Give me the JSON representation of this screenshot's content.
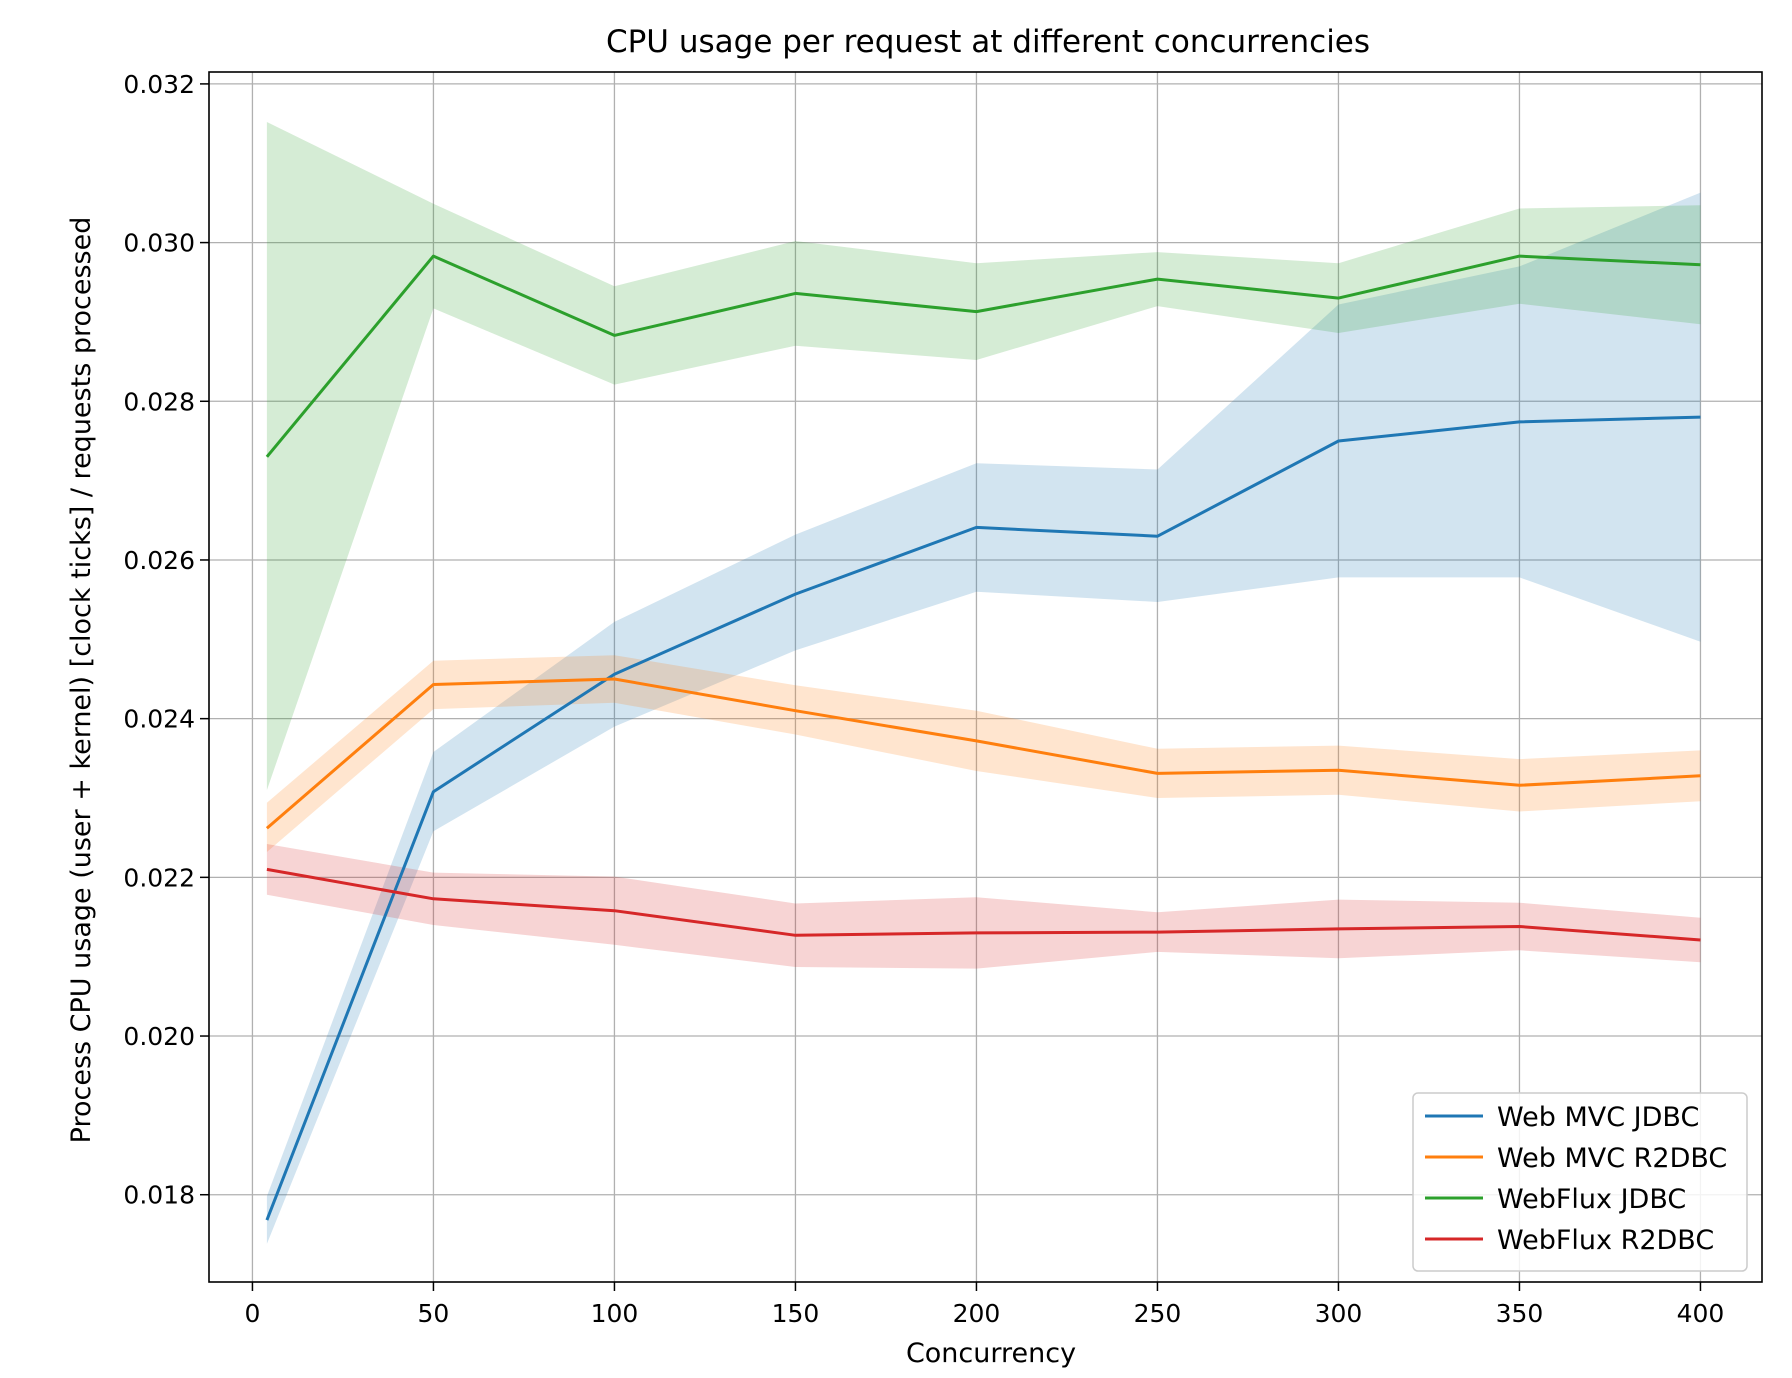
{
  "chart_data": {
    "type": "line",
    "title": "CPU usage per request at different concurrencies",
    "xlabel": "Concurrency",
    "ylabel": "Process CPU usage (user + kernel) [clock ticks] / requests processed",
    "xlim": [
      -12,
      417
    ],
    "ylim": [
      0.0169,
      0.03215
    ],
    "xticks": [
      0,
      50,
      100,
      150,
      200,
      250,
      300,
      350,
      400
    ],
    "yticks": [
      0.018,
      0.02,
      0.022,
      0.024,
      0.026,
      0.028,
      0.03,
      0.032
    ],
    "xtick_labels": [
      "0",
      "50",
      "100",
      "150",
      "200",
      "250",
      "300",
      "350",
      "400"
    ],
    "ytick_labels": [
      "0.018",
      "0.020",
      "0.022",
      "0.024",
      "0.026",
      "0.028",
      "0.030",
      "0.032"
    ],
    "grid": true,
    "legend_position": "lower right",
    "x": [
      4,
      50,
      100,
      150,
      200,
      250,
      300,
      350,
      400
    ],
    "series": [
      {
        "name": "Web MVC JDBC",
        "color": "#1f77b4",
        "values": [
          0.01768,
          0.02308,
          0.02456,
          0.02557,
          0.02641,
          0.0263,
          0.0275,
          0.02774,
          0.0278
        ],
        "lower": [
          0.01738,
          0.02258,
          0.0239,
          0.02486,
          0.0256,
          0.02547,
          0.02578,
          0.02578,
          0.02497
        ],
        "upper": [
          0.01798,
          0.02358,
          0.02522,
          0.02632,
          0.02722,
          0.02714,
          0.02922,
          0.0297,
          0.03063
        ]
      },
      {
        "name": "Web MVC R2DBC",
        "color": "#ff7f0e",
        "values": [
          0.02262,
          0.02443,
          0.0245,
          0.0241,
          0.02372,
          0.02331,
          0.02335,
          0.02316,
          0.02328
        ],
        "lower": [
          0.02232,
          0.02412,
          0.0242,
          0.0238,
          0.02334,
          0.023,
          0.02304,
          0.02283,
          0.02296
        ],
        "upper": [
          0.02294,
          0.02473,
          0.0248,
          0.02442,
          0.0241,
          0.02362,
          0.02366,
          0.02349,
          0.0236
        ]
      },
      {
        "name": "WebFlux JDBC",
        "color": "#2ca02c",
        "values": [
          0.0273,
          0.02983,
          0.02883,
          0.02936,
          0.02913,
          0.02954,
          0.0293,
          0.02983,
          0.02972
        ],
        "lower": [
          0.0231,
          0.02917,
          0.02821,
          0.0287,
          0.02852,
          0.0292,
          0.02886,
          0.02923,
          0.02897
        ],
        "upper": [
          0.03152,
          0.03049,
          0.02945,
          0.03002,
          0.02974,
          0.02988,
          0.02974,
          0.03043,
          0.03047
        ]
      },
      {
        "name": "WebFlux R2DBC",
        "color": "#d62728",
        "values": [
          0.0221,
          0.02173,
          0.02158,
          0.02127,
          0.0213,
          0.02131,
          0.02135,
          0.02138,
          0.02121
        ],
        "lower": [
          0.02178,
          0.0214,
          0.02115,
          0.02087,
          0.02085,
          0.02106,
          0.02098,
          0.02108,
          0.02093
        ],
        "upper": [
          0.02242,
          0.02206,
          0.02201,
          0.02167,
          0.02175,
          0.02156,
          0.02172,
          0.02168,
          0.02149
        ]
      }
    ]
  }
}
